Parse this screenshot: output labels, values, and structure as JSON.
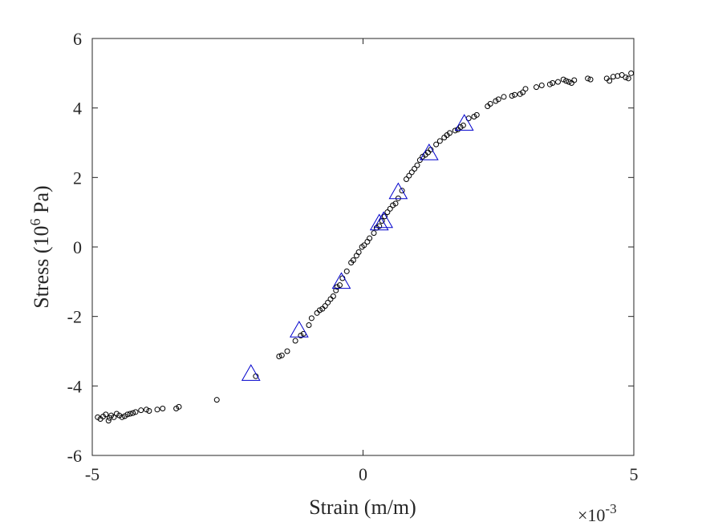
{
  "chart_data": {
    "type": "scatter",
    "title": "",
    "xlabel": "Strain (m/m)",
    "ylabel_parts": {
      "pre": "Stress (10",
      "sup": "6",
      "post": " Pa)"
    },
    "x_multiplier": {
      "base": "×10",
      "exp": "-3"
    },
    "xlim": [
      -5,
      5
    ],
    "ylim": [
      -6,
      6
    ],
    "xticks": [
      "-5",
      "0",
      "5"
    ],
    "yticks": [
      "-6",
      "-4",
      "-2",
      "0",
      "2",
      "4",
      "6"
    ],
    "xtick_values": [
      -5,
      0,
      5
    ],
    "ytick_values": [
      -6,
      -4,
      -2,
      0,
      2,
      4,
      6
    ],
    "grid": false,
    "series": [
      {
        "marker": "circle",
        "color": "#000000",
        "x": [
          -4.9,
          -4.85,
          -4.8,
          -4.75,
          -4.7,
          -4.68,
          -4.65,
          -4.6,
          -4.55,
          -4.5,
          -4.45,
          -4.4,
          -4.35,
          -4.3,
          -4.25,
          -4.2,
          -4.1,
          -4.0,
          -3.95,
          -3.8,
          -3.7,
          -3.45,
          -3.4,
          -2.7,
          -1.98,
          -1.55,
          -1.5,
          -1.4,
          -1.25,
          -1.15,
          -1.1,
          -1.0,
          -0.95,
          -0.85,
          -0.8,
          -0.75,
          -0.7,
          -0.65,
          -0.6,
          -0.55,
          -0.5,
          -0.48,
          -0.43,
          -0.38,
          -0.3,
          -0.22,
          -0.18,
          -0.12,
          -0.08,
          -0.02,
          0.02,
          0.08,
          0.12,
          0.2,
          0.25,
          0.3,
          0.35,
          0.4,
          0.45,
          0.5,
          0.55,
          0.6,
          0.65,
          0.72,
          0.8,
          0.85,
          0.9,
          0.95,
          1.0,
          1.05,
          1.1,
          1.15,
          1.2,
          1.25,
          1.35,
          1.42,
          1.5,
          1.55,
          1.6,
          1.7,
          1.75,
          1.8,
          1.85,
          1.95,
          2.05,
          2.1,
          2.3,
          2.35,
          2.45,
          2.5,
          2.6,
          2.75,
          2.8,
          2.9,
          2.95,
          3.0,
          3.2,
          3.3,
          3.45,
          3.5,
          3.6,
          3.7,
          3.75,
          3.8,
          3.85,
          3.9,
          4.15,
          4.2,
          4.5,
          4.55,
          4.62,
          4.7,
          4.78,
          4.85,
          4.9,
          4.95
        ],
        "y": [
          -4.9,
          -4.95,
          -4.88,
          -4.82,
          -5.0,
          -4.92,
          -4.85,
          -4.9,
          -4.8,
          -4.85,
          -4.9,
          -4.87,
          -4.82,
          -4.8,
          -4.78,
          -4.75,
          -4.7,
          -4.68,
          -4.72,
          -4.68,
          -4.65,
          -4.65,
          -4.6,
          -4.4,
          -3.72,
          -3.15,
          -3.12,
          -3.0,
          -2.7,
          -2.55,
          -2.5,
          -2.25,
          -2.05,
          -1.9,
          -1.82,
          -1.78,
          -1.7,
          -1.6,
          -1.5,
          -1.42,
          -1.25,
          -1.15,
          -1.1,
          -0.9,
          -0.7,
          -0.45,
          -0.38,
          -0.25,
          -0.15,
          0.0,
          0.05,
          0.15,
          0.25,
          0.4,
          0.55,
          0.6,
          0.75,
          0.88,
          1.0,
          1.1,
          1.2,
          1.25,
          1.4,
          1.62,
          1.95,
          2.05,
          2.15,
          2.25,
          2.35,
          2.5,
          2.6,
          2.65,
          2.72,
          2.8,
          2.95,
          3.05,
          3.15,
          3.22,
          3.28,
          3.35,
          3.38,
          3.45,
          3.5,
          3.7,
          3.75,
          3.8,
          4.05,
          4.12,
          4.2,
          4.25,
          4.32,
          4.35,
          4.38,
          4.4,
          4.45,
          4.55,
          4.6,
          4.65,
          4.68,
          4.72,
          4.75,
          4.82,
          4.78,
          4.75,
          4.72,
          4.8,
          4.85,
          4.82,
          4.85,
          4.78,
          4.9,
          4.92,
          4.95,
          4.88,
          4.85,
          5.0
        ]
      },
      {
        "marker": "triangle",
        "color": "#0000cc",
        "x": [
          -2.07,
          -1.18,
          -0.4,
          0.3,
          0.38,
          0.65,
          1.22,
          1.87
        ],
        "y": [
          -3.65,
          -2.4,
          -1.0,
          0.68,
          0.75,
          1.58,
          2.7,
          3.55
        ]
      }
    ]
  }
}
